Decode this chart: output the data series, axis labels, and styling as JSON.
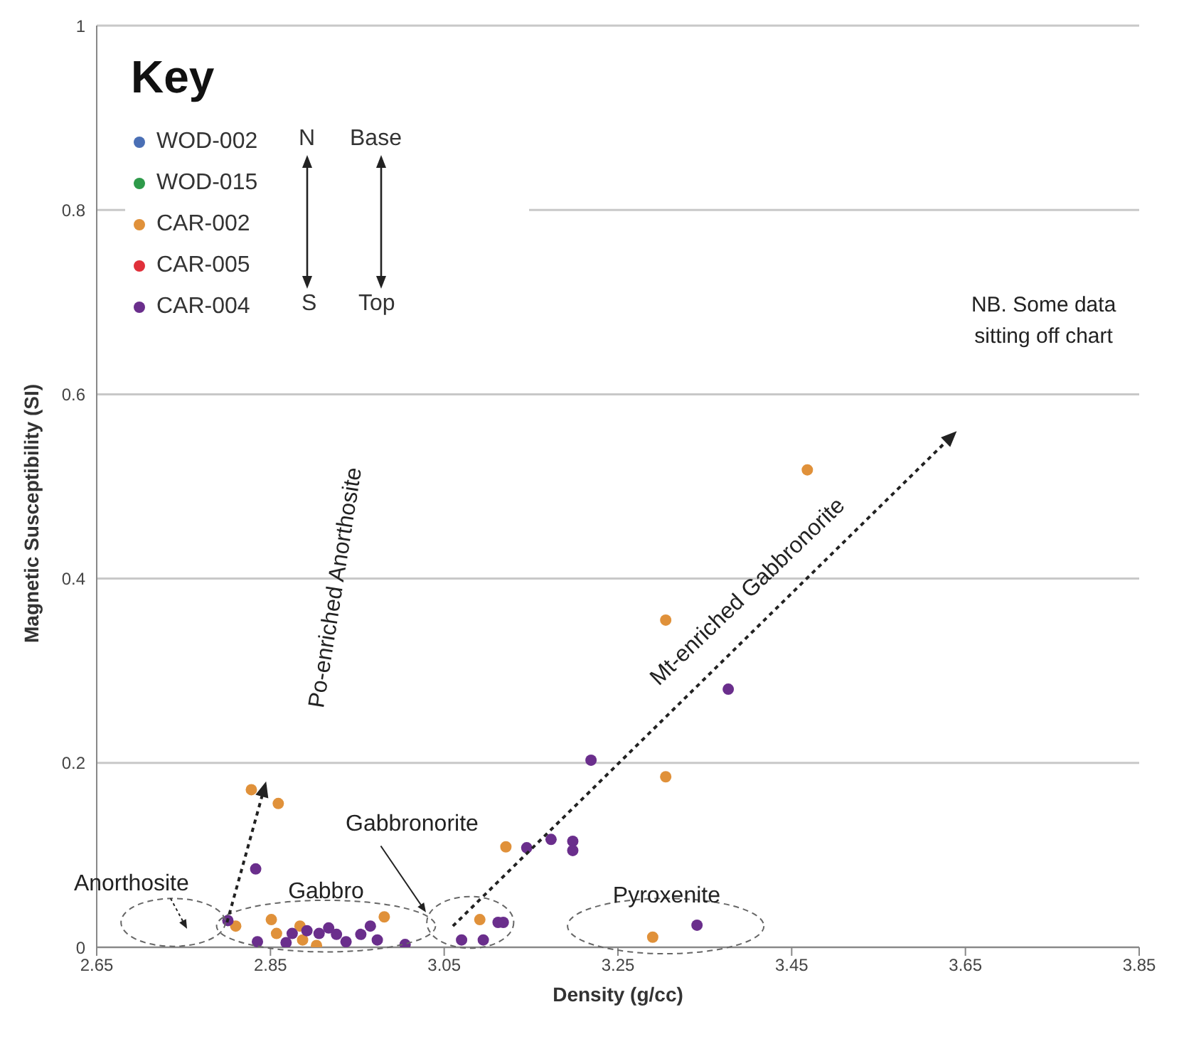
{
  "chart_data": {
    "type": "scatter",
    "xlabel": "Density (g/cc)",
    "ylabel": "Magnetic Susceptibility (SI)",
    "legend_title": "Key",
    "legend": "top left",
    "grid": "y",
    "marker": "circle",
    "xlim": [
      2.65,
      3.85
    ],
    "xticks": [
      2.65,
      2.85,
      3.05,
      3.25,
      3.45,
      3.65,
      3.85
    ],
    "ylim": [
      0,
      1
    ],
    "yticks": [
      0,
      0.2,
      0.4,
      0.6,
      0.8,
      1
    ],
    "series": [
      {
        "name": "WOD-002",
        "color": "#4a6fb5"
      },
      {
        "name": "WOD-015",
        "color": "#2e9a4a"
      },
      {
        "name": "CAR-002",
        "color": "#e0913a",
        "x": [
          2.828,
          2.859,
          3.468,
          3.305,
          3.305,
          3.121,
          3.29,
          3.091,
          2.851,
          2.884,
          2.981,
          2.857,
          2.887,
          2.903,
          2.81
        ],
        "values": [
          0.171,
          0.156,
          0.518,
          0.355,
          0.185,
          0.109,
          0.011,
          0.03,
          0.03,
          0.023,
          0.033,
          0.015,
          0.008,
          0.002,
          0.023
        ]
      },
      {
        "name": "CAR-005",
        "color": "#e0303a"
      },
      {
        "name": "CAR-004",
        "color": "#6a2e8c",
        "x": [
          2.833,
          2.801,
          2.835,
          2.868,
          2.875,
          2.892,
          2.906,
          2.917,
          2.926,
          2.937,
          2.954,
          2.965,
          2.973,
          3.005,
          3.07,
          3.095,
          3.112,
          3.118,
          3.145,
          3.173,
          3.198,
          3.198,
          3.219,
          3.377,
          3.341
        ],
        "values": [
          0.085,
          0.029,
          0.006,
          0.005,
          0.015,
          0.018,
          0.015,
          0.021,
          0.014,
          0.006,
          0.014,
          0.023,
          0.008,
          0.003,
          0.008,
          0.008,
          0.027,
          0.027,
          0.108,
          0.117,
          0.115,
          0.105,
          0.203,
          0.28,
          0.024
        ]
      }
    ],
    "annotations": [
      "Anorthosite",
      "Gabbro",
      "Gabbronorite",
      "Pyroxenite",
      "Po-enriched Anorthosite",
      "Mt-enriched Gabbronorite",
      "NB. Some data sitting off chart",
      "N",
      "S",
      "Base",
      "Top"
    ]
  }
}
